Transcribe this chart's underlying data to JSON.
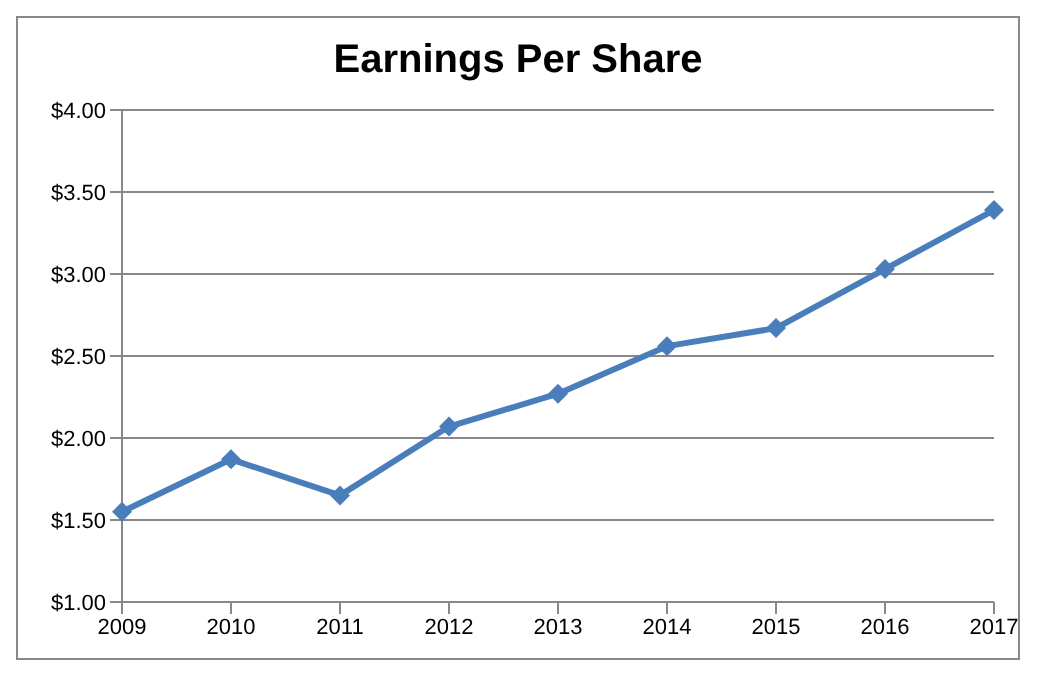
{
  "chart_data": {
    "type": "line",
    "title": "Earnings Per Share",
    "categories": [
      "2009",
      "2010",
      "2011",
      "2012",
      "2013",
      "2014",
      "2015",
      "2016",
      "2017"
    ],
    "series": [
      {
        "color": "#4a7ebb",
        "values": [
          1.55,
          1.87,
          1.65,
          2.07,
          2.27,
          2.56,
          2.67,
          3.03,
          3.39
        ]
      }
    ],
    "ylim": [
      1,
      4
    ],
    "yticks": [
      {
        "value": 1,
        "label": "$1.00"
      },
      {
        "value": 1.5,
        "label": "$1.50"
      },
      {
        "value": 2,
        "label": "$2.00"
      },
      {
        "value": 2.5,
        "label": "$2.50"
      },
      {
        "value": 3,
        "label": "$3.00"
      },
      {
        "value": 3.5,
        "label": "$3.50"
      },
      {
        "value": 4,
        "label": "$4.00"
      }
    ],
    "grid": "y",
    "legend": false,
    "marker": "diamond",
    "line_style": "solid"
  }
}
